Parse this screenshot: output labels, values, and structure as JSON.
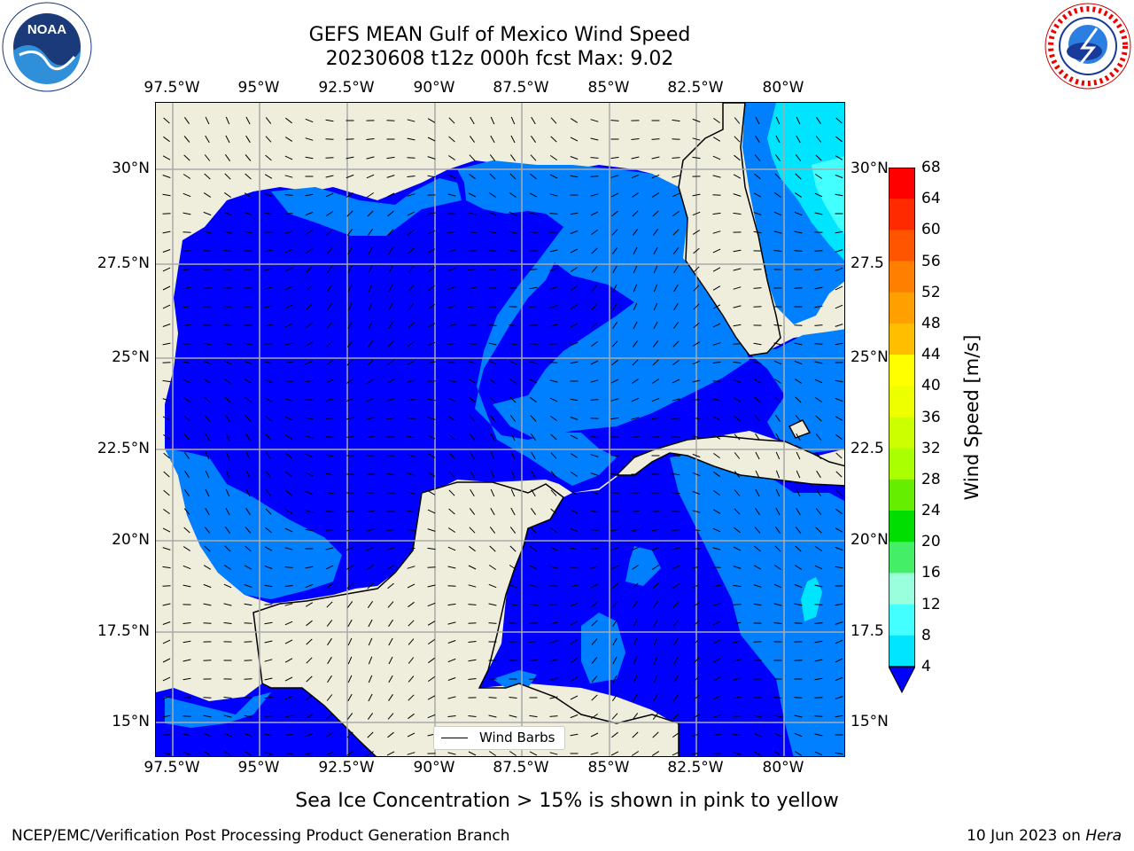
{
  "title": {
    "line1": "GEFS MEAN Gulf of Mexico Wind Speed",
    "line2": "20230608 t12z 000h fcst   Max: 9.02"
  },
  "axes": {
    "lon_labels": [
      "97.5°W",
      "95°W",
      "92.5°W",
      "90°W",
      "87.5°W",
      "85°W",
      "82.5°W",
      "80°W"
    ],
    "lat_labels_left": [
      "30°N",
      "27.5°N",
      "25°N",
      "22.5°N",
      "20°N",
      "17.5°N",
      "15°N"
    ],
    "lat_labels_right": [
      "30°N",
      "27.5",
      "25°N",
      "22.5",
      "20°N",
      "17.5",
      "15°N"
    ]
  },
  "colorbar": {
    "label": "Wind Speed [m/s]",
    "ticks": [
      "68",
      "64",
      "60",
      "56",
      "52",
      "48",
      "44",
      "40",
      "36",
      "32",
      "28",
      "24",
      "20",
      "16",
      "12",
      "8",
      "4"
    ],
    "colors": [
      "#ff0000",
      "#ff2200",
      "#ff4400",
      "#ff6600",
      "#ff8800",
      "#ffaa00",
      "#ffcc00",
      "#ffee00",
      "#ffff00",
      "#ddff00",
      "#bbff00",
      "#88ee00",
      "#44dd00",
      "#00dd00",
      "#00cc44",
      "#44ee88",
      "#99ffcc",
      "#66ffee",
      "#22ffff",
      "#00e5ff",
      "#00a0ff",
      "#0066ff",
      "#0080ff"
    ],
    "under_color": "#0000ff"
  },
  "legend": {
    "label": "Wind Barbs"
  },
  "note": "Sea Ice Concentration > 15% is shown in pink to yellow",
  "footer": {
    "left": "NCEP/EMC/Verification Post Processing Product Generation Branch",
    "date": "10 Jun 2023 on ",
    "machine": "Hera"
  },
  "colors": {
    "land": "#efeedd",
    "wind_lt4": "#0000ff",
    "wind_4_8": "#0080ff",
    "wind_8_12": "#00e5ff",
    "wind_12_16": "#44ffff",
    "grid": "#aaaaaa"
  },
  "logos": {
    "noaa_text": "NOAA",
    "nws_text": "NATIONAL WEATHER SERVICE"
  }
}
